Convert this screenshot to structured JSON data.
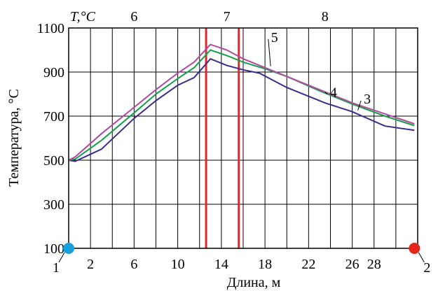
{
  "chart_data": {
    "type": "line",
    "title": "",
    "xlabel": "Длина, м",
    "ylabel": "Температура, °С",
    "xlim": [
      0,
      32
    ],
    "ylim": [
      100,
      1100
    ],
    "x_ticks": [
      {
        "value": 2,
        "label": "2"
      },
      {
        "value": 6,
        "label": "6"
      },
      {
        "value": 10,
        "label": "10"
      },
      {
        "value": 14,
        "label": "14"
      },
      {
        "value": 18,
        "label": "18"
      },
      {
        "value": 22,
        "label": "22"
      },
      {
        "value": 26,
        "label": "26"
      },
      {
        "value": 28,
        "label": "28"
      }
    ],
    "y_ticks": [
      {
        "value": 100,
        "label": "100"
      },
      {
        "value": 300,
        "label": "300"
      },
      {
        "value": 500,
        "label": "500"
      },
      {
        "value": 700,
        "label": "700"
      },
      {
        "value": 900,
        "label": "900"
      },
      {
        "value": 1100,
        "label": "1100"
      }
    ],
    "grid": true,
    "top_axis_label": "T,°С",
    "zones": [
      {
        "label": "6",
        "x": 6
      },
      {
        "label": "7",
        "x": 14.5
      },
      {
        "label": "8",
        "x": 23.5
      }
    ],
    "zone_boundaries": [
      {
        "x": 12.6,
        "color": "#e8232a"
      },
      {
        "x": 15.6,
        "color": "#e8232a"
      }
    ],
    "series": [
      {
        "name": "3",
        "color": "#3c2a8c",
        "x": [
          0,
          0.6,
          3,
          6,
          8,
          10,
          11.5,
          13,
          14.5,
          16,
          17.5,
          20,
          23.5,
          26,
          29,
          31.7
        ],
        "y": [
          500,
          495,
          550,
          690,
          770,
          840,
          875,
          960,
          930,
          910,
          895,
          830,
          760,
          720,
          655,
          636
        ],
        "label_x": 26.8,
        "label_y": 770
      },
      {
        "name": "4",
        "color": "#14a04a",
        "x": [
          0,
          0.6,
          3,
          6,
          8,
          10,
          11.5,
          13,
          14.5,
          16,
          18,
          20,
          23,
          26,
          29,
          31.7
        ],
        "y": [
          500,
          505,
          590,
          715,
          800,
          870,
          920,
          1000,
          975,
          945,
          915,
          880,
          815,
          755,
          700,
          657
        ],
        "label_x": 23.7,
        "label_y": 800
      },
      {
        "name": "5",
        "color": "#b04aa0",
        "x": [
          0,
          0.6,
          3,
          6,
          8,
          10,
          11.5,
          13,
          14.5,
          16,
          18,
          20,
          23,
          26,
          29,
          31.7
        ],
        "y": [
          500,
          515,
          620,
          740,
          820,
          895,
          945,
          1025,
          1000,
          960,
          920,
          880,
          820,
          760,
          710,
          665
        ],
        "label_x": 18.3,
        "label_y": 1050
      }
    ],
    "markers": [
      {
        "label": "1",
        "x": 0,
        "y": 100,
        "color": "#17a0dc"
      },
      {
        "label": "2",
        "x": 31.7,
        "y": 100,
        "color": "#e3261c"
      }
    ]
  }
}
